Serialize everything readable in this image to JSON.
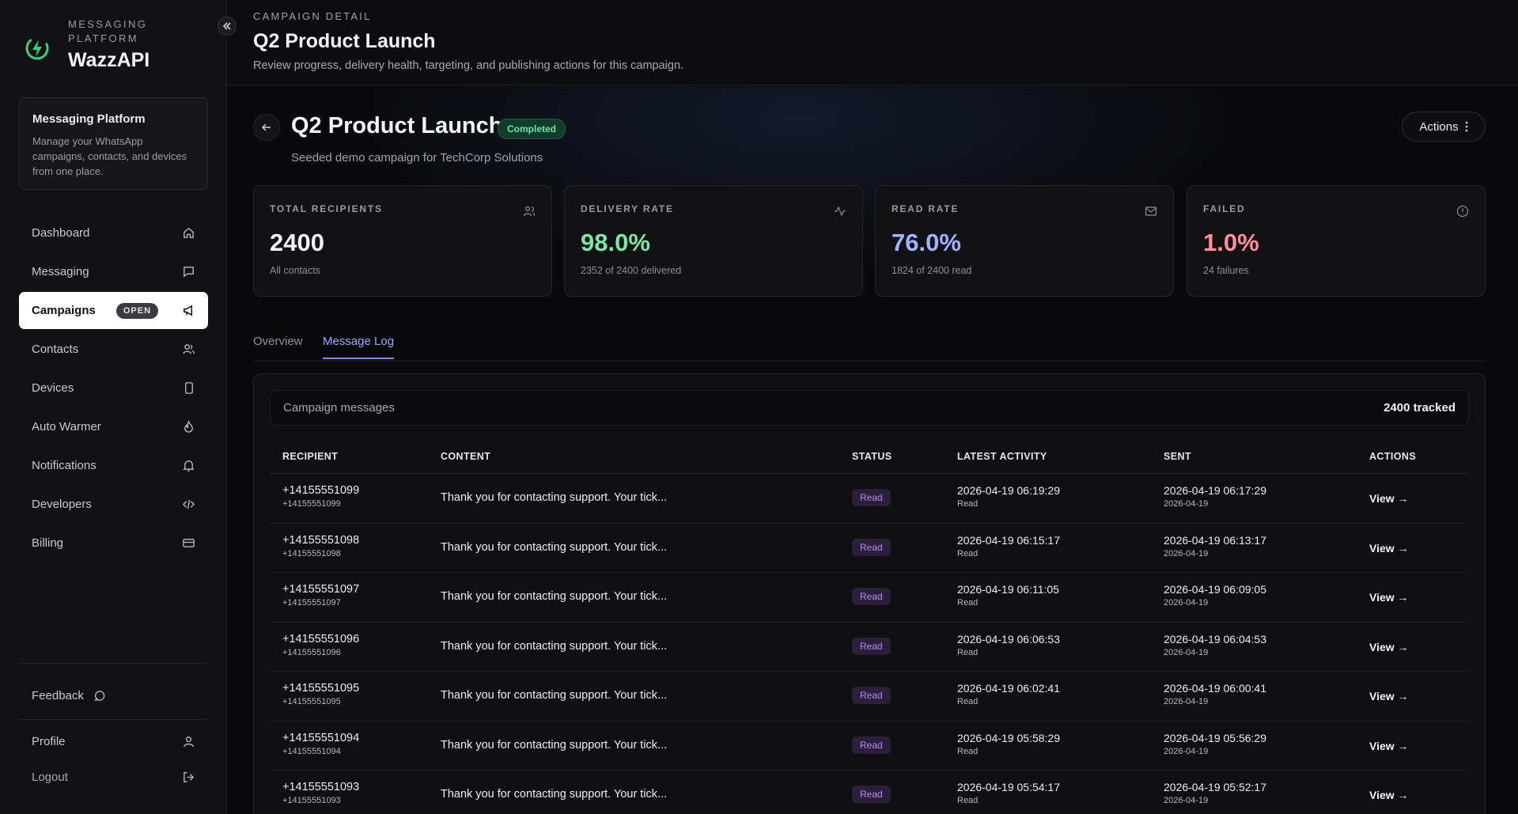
{
  "brand": {
    "sub": "MESSAGING PLATFORM",
    "name": "WazzAPI",
    "accent": "#3ecf7a"
  },
  "info_card": {
    "title": "Messaging Platform",
    "desc": "Manage your WhatsApp campaigns, contacts, and devices from one place."
  },
  "nav": {
    "dashboard": "Dashboard",
    "messaging": "Messaging",
    "campaigns": "Campaigns",
    "campaigns_badge": "OPEN",
    "contacts": "Contacts",
    "devices": "Devices",
    "auto_warmer": "Auto Warmer",
    "notifications": "Notifications",
    "developers": "Developers",
    "billing": "Billing"
  },
  "sidebar_bottom": {
    "feedback": "Feedback",
    "profile": "Profile",
    "logout": "Logout"
  },
  "page": {
    "eyebrow": "CAMPAIGN DETAIL",
    "title": "Q2 Product Launch",
    "desc": "Review progress, delivery health, targeting, and publishing actions for this campaign."
  },
  "campaign": {
    "title": "Q2 Product Launch",
    "status": "Completed",
    "subtitle": "Seeded demo campaign for TechCorp Solutions",
    "actions_label": "Actions"
  },
  "stats": [
    {
      "label": "TOTAL RECIPIENTS",
      "value": "2400",
      "sub": "All contacts",
      "color": "#f4f4f6",
      "icon": "users-icon"
    },
    {
      "label": "DELIVERY RATE",
      "value": "98.0%",
      "sub": "2352 of 2400 delivered",
      "color": "#7ee6a8",
      "icon": "activity-icon"
    },
    {
      "label": "READ RATE",
      "value": "76.0%",
      "sub": "1824 of 2400 read",
      "color": "#9fb4ff",
      "icon": "mail-icon"
    },
    {
      "label": "FAILED",
      "value": "1.0%",
      "sub": "24 failures",
      "color": "#ff8f9a",
      "icon": "alert-circle-icon"
    }
  ],
  "tabs": {
    "overview": "Overview",
    "message_log": "Message Log"
  },
  "log": {
    "title": "Campaign messages",
    "count": "2400 tracked",
    "columns": {
      "recipient": "RECIPIENT",
      "content": "CONTENT",
      "status": "STATUS",
      "latest_activity": "LATEST ACTIVITY",
      "sent": "SENT",
      "actions": "ACTIONS"
    },
    "rows": [
      {
        "recipient": "+14155551099",
        "recipient_sub": "+14155551099",
        "content": "Thank you for contacting support. Your tick...",
        "status": "Read",
        "activity": "2026-04-19 06:19:29",
        "activity_sub": "Read",
        "sent": "2026-04-19 06:17:29",
        "sent_sub": "2026-04-19",
        "action": "View →"
      },
      {
        "recipient": "+14155551098",
        "recipient_sub": "+14155551098",
        "content": "Thank you for contacting support. Your tick...",
        "status": "Read",
        "activity": "2026-04-19 06:15:17",
        "activity_sub": "Read",
        "sent": "2026-04-19 06:13:17",
        "sent_sub": "2026-04-19",
        "action": "View →"
      },
      {
        "recipient": "+14155551097",
        "recipient_sub": "+14155551097",
        "content": "Thank you for contacting support. Your tick...",
        "status": "Read",
        "activity": "2026-04-19 06:11:05",
        "activity_sub": "Read",
        "sent": "2026-04-19 06:09:05",
        "sent_sub": "2026-04-19",
        "action": "View →"
      },
      {
        "recipient": "+14155551096",
        "recipient_sub": "+14155551096",
        "content": "Thank you for contacting support. Your tick...",
        "status": "Read",
        "activity": "2026-04-19 06:06:53",
        "activity_sub": "Read",
        "sent": "2026-04-19 06:04:53",
        "sent_sub": "2026-04-19",
        "action": "View →"
      },
      {
        "recipient": "+14155551095",
        "recipient_sub": "+14155551095",
        "content": "Thank you for contacting support. Your tick...",
        "status": "Read",
        "activity": "2026-04-19 06:02:41",
        "activity_sub": "Read",
        "sent": "2026-04-19 06:00:41",
        "sent_sub": "2026-04-19",
        "action": "View →"
      },
      {
        "recipient": "+14155551094",
        "recipient_sub": "+14155551094",
        "content": "Thank you for contacting support. Your tick...",
        "status": "Read",
        "activity": "2026-04-19 05:58:29",
        "activity_sub": "Read",
        "sent": "2026-04-19 05:56:29",
        "sent_sub": "2026-04-19",
        "action": "View →"
      },
      {
        "recipient": "+14155551093",
        "recipient_sub": "+14155551093",
        "content": "Thank you for contacting support. Your tick...",
        "status": "Read",
        "activity": "2026-04-19 05:54:17",
        "activity_sub": "Read",
        "sent": "2026-04-19 05:52:17",
        "sent_sub": "2026-04-19",
        "action": "View →"
      }
    ]
  }
}
